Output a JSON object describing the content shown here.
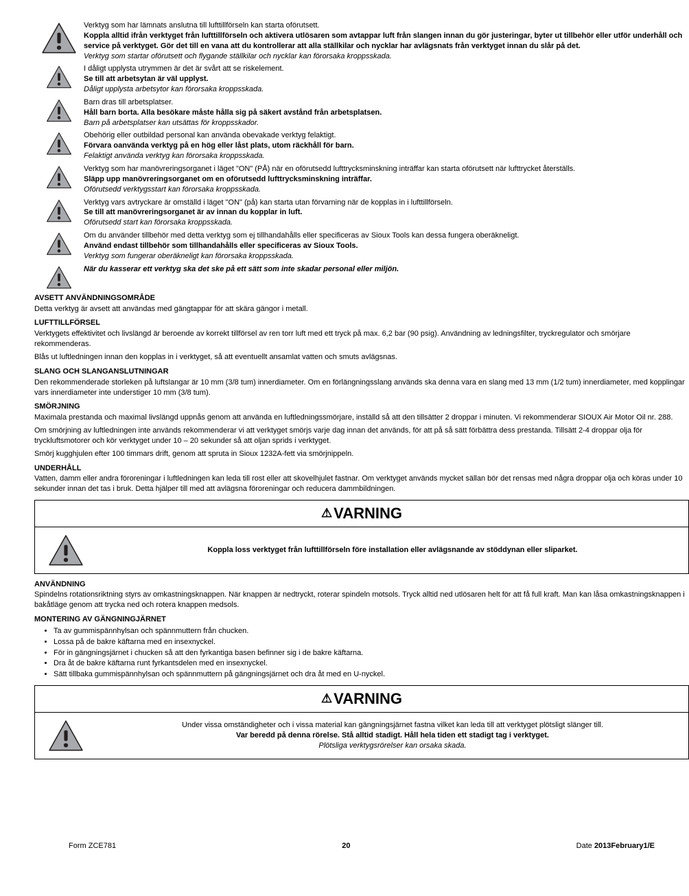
{
  "icon": {
    "fill": "#a7a9ac",
    "stroke": "#231f20",
    "size_small": 38,
    "size_large": 52
  },
  "warnings": [
    {
      "lines": [
        {
          "text": "Verktyg som har lämnats anslutna till lufttillförseln kan starta oförutsett.",
          "style": ""
        },
        {
          "text": "Koppla alltid ifrån verktyget från lufttillförseln och aktivera utlösaren som avtappar luft från slangen innan du gör justeringar, byter ut tillbehör eller utför underhåll och service på verktyget. Gör det till en vana att du kontrollerar att alla ställkilar och nycklar har avlägsnats från verktyget innan du slår på det.",
          "style": "bold"
        },
        {
          "text": "Verktyg som startar oförutsett och flygande ställkilar och nycklar kan förorsaka kroppsskada.",
          "style": "italic"
        }
      ]
    },
    {
      "lines": [
        {
          "text": "I dåligt upplysta utrymmen är det är svårt att se riskelement.",
          "style": ""
        },
        {
          "text": "Se till att arbetsytan är väl upplyst.",
          "style": "bold"
        },
        {
          "text": "Dåligt upplysta arbetsytor kan förorsaka kroppsskada.",
          "style": "italic"
        }
      ]
    },
    {
      "lines": [
        {
          "text": "Barn dras till arbetsplatser.",
          "style": ""
        },
        {
          "text": "Håll barn borta. Alla besökare måste hålla sig på säkert avstånd från arbetsplatsen.",
          "style": "bold"
        },
        {
          "text": "Barn på arbetsplatser kan utsättas för kroppsskador.",
          "style": "italic"
        }
      ]
    },
    {
      "lines": [
        {
          "text": "Obehörig eller outbildad personal kan använda obevakade verktyg felaktigt.",
          "style": ""
        },
        {
          "text": "Förvara oanvända verktyg på en hög eller låst plats, utom räckhåll för barn.",
          "style": "bold"
        },
        {
          "text": "Felaktigt använda verktyg kan förorsaka kroppsskada.",
          "style": "italic"
        }
      ]
    },
    {
      "lines": [
        {
          "text": "Verktyg som har manövreringsorganet i läget \"ON\" (PÅ) när en oförutsedd lufttrycksminskning inträffar kan starta oförutsett när lufttrycket återställs.",
          "style": ""
        },
        {
          "text": "Släpp upp manövreringsorganet om en oförutsedd lufttrycksminskning inträffar.",
          "style": "bold"
        },
        {
          "text": "Oförutsedd verktygsstart kan förorsaka kroppsskada.",
          "style": "italic"
        }
      ]
    },
    {
      "lines": [
        {
          "text": "Verktyg vars avtryckare är omställd i läget \"ON\" (på) kan starta utan förvarning när de kopplas in i lufttillförseln.",
          "style": ""
        },
        {
          "text": "Se till att manövreringsorganet är av innan du kopplar in luft.",
          "style": "bold"
        },
        {
          "text": "Oförutsedd start kan förorsaka kroppsskada.",
          "style": "italic"
        }
      ]
    },
    {
      "lines": [
        {
          "text": "Om du använder tillbehör med detta verktyg som ej tillhandahålls eller specificeras av Sioux Tools kan dessa fungera oberäkneligt.",
          "style": ""
        },
        {
          "text": "Använd endast tillbehör som tillhandahålls eller specificeras av Sioux Tools.",
          "style": "bold"
        },
        {
          "text": "Verktyg som fungerar oberäkneligt kan förorsaka kroppsskada.",
          "style": "italic"
        }
      ]
    },
    {
      "lines": [
        {
          "text": "När du kasserar ett verktyg ska det ske på ett sätt som inte skadar personal eller miljön.",
          "style": "bold-italic"
        }
      ]
    }
  ],
  "sections": {
    "intended_use": {
      "heading": "AVSETT ANVÄNDNINGSOMRÅDE",
      "body": [
        "Detta verktyg är avsett att användas med gängtappar för att skära gängor i metall."
      ]
    },
    "air_supply": {
      "heading": "LUFTTILLFÖRSEL",
      "body": [
        "Verktygets effektivitet och livslängd är beroende av korrekt tillförsel av ren torr luft med ett tryck på max. 6,2 bar (90 psig). Användning av ledningsfilter, tryckregulator och smörjare rekommenderas.",
        "Blås ut luftledningen innan den kopplas in i verktyget, så att eventuellt ansamlat vatten och smuts avlägsnas."
      ]
    },
    "hose": {
      "heading": "SLANG OCH SLANGANSLUTNINGAR",
      "body": [
        "Den rekommenderade storleken på luftslangar är 10 mm (3/8 tum) innerdiameter. Om en förlängningsslang används ska denna vara en slang med 13 mm (1/2 tum) innerdiameter, med kopplingar vars innerdiameter inte understiger 10 mm (3/8 tum)."
      ]
    },
    "lubrication": {
      "heading": "SMÖRJNING",
      "body": [
        "Maximala prestanda och maximal livslängd uppnås genom att använda en luftledningssmörjare, inställd så att den tillsätter 2 droppar i minuten. Vi rekommenderar SIOUX Air Motor Oil nr. 288.",
        "Om smörjning av luftledningen inte används rekommenderar vi att verktyget smörjs varje dag innan det används, för att på så sätt förbättra dess prestanda. Tillsätt 2-4 droppar olja för tryckluftsmotorer och kör verktyget under 10 – 20 sekunder så att oljan sprids i verktyget.",
        "Smörj kugghjulen efter 100 timmars drift, genom att spruta in Sioux 1232A-fett via smörjnippeln."
      ]
    },
    "maintenance": {
      "heading": "UNDERHÅLL",
      "body": [
        "Vatten, damm eller andra föroreningar i luftledningen kan leda till rost eller att skovelhjulet fastnar. Om verktyget används mycket sällan bör det rensas med några droppar olja och köras under 10 sekunder innan det tas i bruk. Detta hjälper till med att avlägsna föroreningar och reducera dammbildningen."
      ]
    },
    "usage": {
      "heading": "ANVÄNDNING",
      "body": [
        "Spindelns rotationsriktning styrs av omkastningsknappen. När knappen är nedtryckt, roterar spindeln motsols. Tryck alltid ned utlösaren helt för att få full kraft. Man kan låsa omkastningsknappen i bakåtläge genom att trycka ned och rotera knappen medsols."
      ]
    },
    "mounting": {
      "heading": "MONTERING AV GÄNGNINGJÄRNET",
      "items": [
        "Ta av gummispännhylsan och spännmuttern från chucken.",
        "Lossa på de bakre käftarna med en insexnyckel.",
        "För in gängningsjärnet i chucken så att den fyrkantiga basen befinner sig i de bakre käftarna.",
        "Dra åt de bakre käftarna runt fyrkantsdelen med en insexnyckel.",
        "Sätt tillbaka gummispännhylsan och spännmuttern på gängningsjärnet och dra åt med en U-nyckel."
      ]
    }
  },
  "warning_box_1": {
    "title": "VARNING",
    "text": "Koppla loss verktyget från lufttillförseln före installation eller avlägsnande av stöddynan eller sliparket."
  },
  "warning_box_2": {
    "title": "VARNING",
    "line1": "Under vissa omständigheter och i vissa material kan gängningsjärnet fastna vilket kan leda till att verktyget plötsligt slänger till.",
    "line2": "Var beredd på denna rörelse. Stå alltid stadigt. Håll hela tiden ett stadigt tag i verktyget.",
    "line3": "Plötsliga verktygsrörelser kan orsaka skada."
  },
  "footer": {
    "form": "Form ZCE781",
    "page": "20",
    "date_label": "Date ",
    "date_value": "2013February1/E"
  }
}
